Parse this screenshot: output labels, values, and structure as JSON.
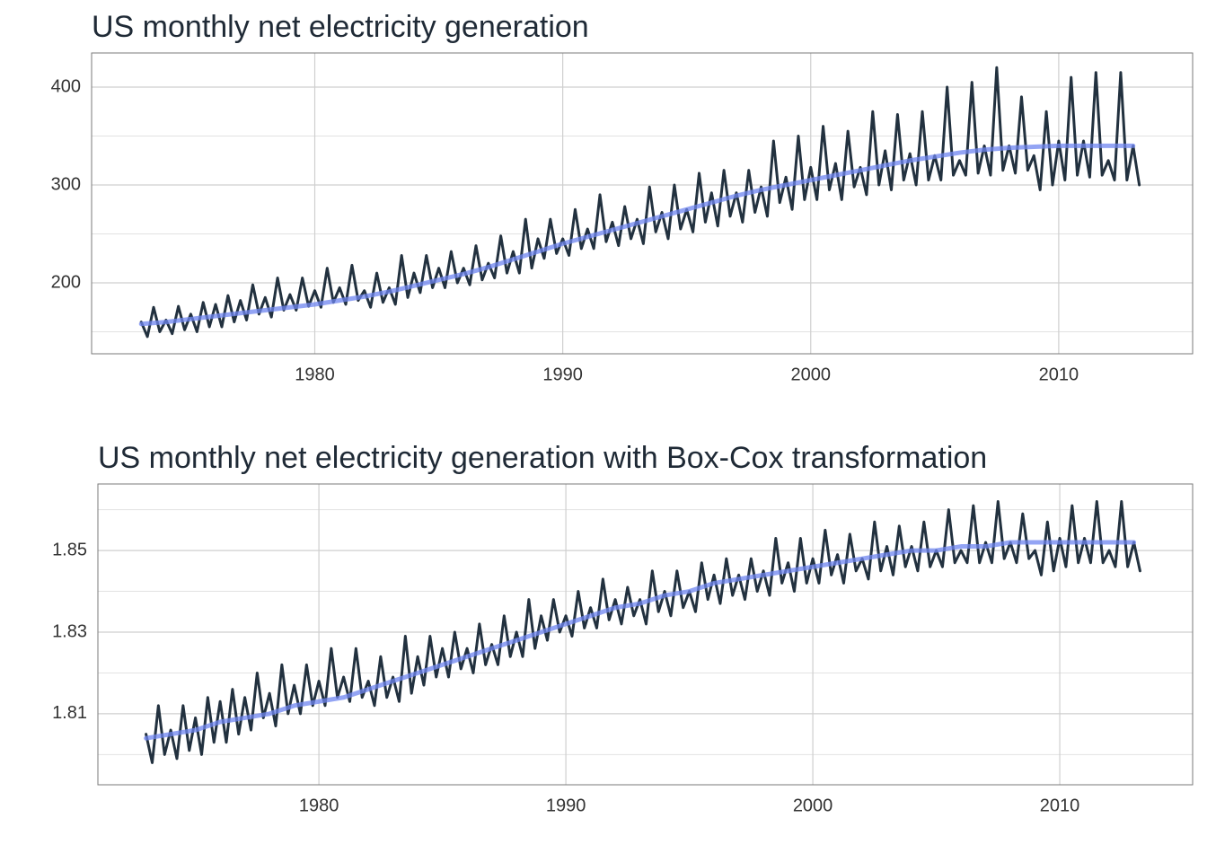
{
  "chart_data": [
    {
      "type": "line",
      "title": "US monthly net electricity generation",
      "xlim": [
        1971,
        2015.4
      ],
      "xticks": [
        1980,
        1990,
        2000,
        2010
      ],
      "ylim": [
        127.5,
        434.9
      ],
      "yticks": [
        200,
        300,
        400
      ],
      "minor_yticks": [
        150,
        250,
        350
      ],
      "grid": true,
      "series": [
        {
          "color": "#22313f",
          "width": 3,
          "x": [
            1973,
            1973.25,
            1973.5,
            1973.75,
            1974,
            1974.25,
            1974.5,
            1974.75,
            1975,
            1975.25,
            1975.5,
            1975.75,
            1976,
            1976.25,
            1976.5,
            1976.75,
            1977,
            1977.25,
            1977.5,
            1977.75,
            1978,
            1978.25,
            1978.5,
            1978.75,
            1979,
            1979.25,
            1979.5,
            1979.75,
            1980,
            1980.25,
            1980.5,
            1980.75,
            1981,
            1981.25,
            1981.5,
            1981.75,
            1982,
            1982.25,
            1982.5,
            1982.75,
            1983,
            1983.25,
            1983.5,
            1983.75,
            1984,
            1984.25,
            1984.5,
            1984.75,
            1985,
            1985.25,
            1985.5,
            1985.75,
            1986,
            1986.25,
            1986.5,
            1986.75,
            1987,
            1987.25,
            1987.5,
            1987.75,
            1988,
            1988.25,
            1988.5,
            1988.75,
            1989,
            1989.25,
            1989.5,
            1989.75,
            1990,
            1990.25,
            1990.5,
            1990.75,
            1991,
            1991.25,
            1991.5,
            1991.75,
            1992,
            1992.25,
            1992.5,
            1992.75,
            1993,
            1993.25,
            1993.5,
            1993.75,
            1994,
            1994.25,
            1994.5,
            1994.75,
            1995,
            1995.25,
            1995.5,
            1995.75,
            1996,
            1996.25,
            1996.5,
            1996.75,
            1997,
            1997.25,
            1997.5,
            1997.75,
            1998,
            1998.25,
            1998.5,
            1998.75,
            1999,
            1999.25,
            1999.5,
            1999.75,
            2000,
            2000.25,
            2000.5,
            2000.75,
            2001,
            2001.25,
            2001.5,
            2001.75,
            2002,
            2002.25,
            2002.5,
            2002.75,
            2003,
            2003.25,
            2003.5,
            2003.75,
            2004,
            2004.25,
            2004.5,
            2004.75,
            2005,
            2005.25,
            2005.5,
            2005.75,
            2006,
            2006.25,
            2006.5,
            2006.75,
            2007,
            2007.25,
            2007.5,
            2007.75,
            2008,
            2008.25,
            2008.5,
            2008.75,
            2009,
            2009.25,
            2009.5,
            2009.75,
            2010,
            2010.25,
            2010.5,
            2010.75,
            2011,
            2011.25,
            2011.5,
            2011.75,
            2012,
            2012.25,
            2012.5,
            2012.75,
            2013,
            2013.25
          ],
          "values": [
            160,
            145,
            175,
            150,
            162,
            148,
            176,
            152,
            168,
            150,
            180,
            155,
            178,
            155,
            187,
            160,
            182,
            162,
            198,
            168,
            185,
            165,
            205,
            172,
            188,
            172,
            205,
            176,
            192,
            175,
            215,
            180,
            195,
            178,
            218,
            182,
            192,
            175,
            210,
            180,
            195,
            178,
            228,
            185,
            210,
            190,
            228,
            195,
            215,
            195,
            232,
            200,
            215,
            198,
            238,
            203,
            220,
            205,
            248,
            210,
            232,
            210,
            265,
            215,
            245,
            225,
            265,
            230,
            245,
            228,
            275,
            235,
            255,
            235,
            290,
            242,
            262,
            238,
            278,
            245,
            265,
            240,
            298,
            252,
            272,
            245,
            300,
            255,
            275,
            252,
            312,
            262,
            292,
            258,
            315,
            268,
            292,
            262,
            315,
            272,
            298,
            268,
            345,
            282,
            308,
            275,
            350,
            285,
            318,
            285,
            360,
            295,
            322,
            285,
            355,
            298,
            318,
            290,
            375,
            300,
            335,
            295,
            372,
            305,
            332,
            300,
            375,
            305,
            330,
            305,
            400,
            310,
            325,
            310,
            405,
            312,
            340,
            310,
            420,
            315,
            340,
            312,
            390,
            315,
            330,
            295,
            375,
            300,
            345,
            305,
            410,
            310,
            345,
            308,
            415,
            310,
            325,
            305,
            415,
            305,
            340,
            300
          ]
        },
        {
          "color": "#6f86f0",
          "width": 5,
          "opacity": 0.75,
          "x": [
            1973,
            1974,
            1975,
            1976,
            1977,
            1978,
            1979,
            1980,
            1981,
            1982,
            1983,
            1984,
            1985,
            1986,
            1987,
            1988,
            1989,
            1990,
            1991,
            1992,
            1993,
            1994,
            1995,
            1996,
            1997,
            1998,
            1999,
            2000,
            2001,
            2002,
            2003,
            2004,
            2005,
            2006,
            2007,
            2008,
            2009,
            2010,
            2011,
            2012,
            2013
          ],
          "values": [
            158,
            160,
            163,
            166,
            169,
            172,
            175,
            178,
            182,
            186,
            191,
            197,
            203,
            209,
            216,
            224,
            232,
            240,
            247,
            254,
            261,
            268,
            275,
            282,
            289,
            295,
            300,
            305,
            310,
            315,
            320,
            325,
            329,
            333,
            336,
            338,
            339,
            340,
            340,
            340,
            340
          ]
        }
      ]
    },
    {
      "type": "line",
      "title": "US monthly net electricity generation with Box-Cox transformation",
      "xlim": [
        1971.05,
        2015.38
      ],
      "xticks": [
        1980,
        1990,
        2000,
        2010
      ],
      "ylim": [
        1.7926,
        1.8663
      ],
      "yticks": [
        1.81,
        1.83,
        1.85
      ],
      "minor_yticks": [
        1.8,
        1.82,
        1.84,
        1.86
      ],
      "grid": true,
      "series": [
        {
          "color": "#22313f",
          "width": 3,
          "x": [
            1973,
            1973.25,
            1973.5,
            1973.75,
            1974,
            1974.25,
            1974.5,
            1974.75,
            1975,
            1975.25,
            1975.5,
            1975.75,
            1976,
            1976.25,
            1976.5,
            1976.75,
            1977,
            1977.25,
            1977.5,
            1977.75,
            1978,
            1978.25,
            1978.5,
            1978.75,
            1979,
            1979.25,
            1979.5,
            1979.75,
            1980,
            1980.25,
            1980.5,
            1980.75,
            1981,
            1981.25,
            1981.5,
            1981.75,
            1982,
            1982.25,
            1982.5,
            1982.75,
            1983,
            1983.25,
            1983.5,
            1983.75,
            1984,
            1984.25,
            1984.5,
            1984.75,
            1985,
            1985.25,
            1985.5,
            1985.75,
            1986,
            1986.25,
            1986.5,
            1986.75,
            1987,
            1987.25,
            1987.5,
            1987.75,
            1988,
            1988.25,
            1988.5,
            1988.75,
            1989,
            1989.25,
            1989.5,
            1989.75,
            1990,
            1990.25,
            1990.5,
            1990.75,
            1991,
            1991.25,
            1991.5,
            1991.75,
            1992,
            1992.25,
            1992.5,
            1992.75,
            1993,
            1993.25,
            1993.5,
            1993.75,
            1994,
            1994.25,
            1994.5,
            1994.75,
            1995,
            1995.25,
            1995.5,
            1995.75,
            1996,
            1996.25,
            1996.5,
            1996.75,
            1997,
            1997.25,
            1997.5,
            1997.75,
            1998,
            1998.25,
            1998.5,
            1998.75,
            1999,
            1999.25,
            1999.5,
            1999.75,
            2000,
            2000.25,
            2000.5,
            2000.75,
            2001,
            2001.25,
            2001.5,
            2001.75,
            2002,
            2002.25,
            2002.5,
            2002.75,
            2003,
            2003.25,
            2003.5,
            2003.75,
            2004,
            2004.25,
            2004.5,
            2004.75,
            2005,
            2005.25,
            2005.5,
            2005.75,
            2006,
            2006.25,
            2006.5,
            2006.75,
            2007,
            2007.25,
            2007.5,
            2007.75,
            2008,
            2008.25,
            2008.5,
            2008.75,
            2009,
            2009.25,
            2009.5,
            2009.75,
            2010,
            2010.25,
            2010.5,
            2010.75,
            2011,
            2011.25,
            2011.5,
            2011.75,
            2012,
            2012.25,
            2012.5,
            2012.75,
            2013,
            2013.25
          ],
          "values": [
            1.805,
            1.798,
            1.812,
            1.8,
            1.806,
            1.799,
            1.812,
            1.801,
            1.809,
            1.8,
            1.814,
            1.803,
            1.813,
            1.803,
            1.816,
            1.805,
            1.814,
            1.806,
            1.82,
            1.809,
            1.815,
            1.807,
            1.822,
            1.81,
            1.817,
            1.81,
            1.822,
            1.812,
            1.818,
            1.812,
            1.826,
            1.814,
            1.819,
            1.813,
            1.826,
            1.814,
            1.818,
            1.812,
            1.824,
            1.814,
            1.819,
            1.813,
            1.829,
            1.815,
            1.824,
            1.817,
            1.829,
            1.819,
            1.826,
            1.819,
            1.83,
            1.821,
            1.826,
            1.82,
            1.832,
            1.822,
            1.827,
            1.822,
            1.834,
            1.824,
            1.83,
            1.824,
            1.838,
            1.826,
            1.834,
            1.828,
            1.838,
            1.83,
            1.834,
            1.829,
            1.84,
            1.831,
            1.836,
            1.831,
            1.843,
            1.833,
            1.838,
            1.832,
            1.841,
            1.834,
            1.838,
            1.832,
            1.845,
            1.835,
            1.84,
            1.834,
            1.845,
            1.836,
            1.84,
            1.835,
            1.847,
            1.838,
            1.844,
            1.837,
            1.848,
            1.839,
            1.844,
            1.838,
            1.848,
            1.84,
            1.845,
            1.839,
            1.853,
            1.842,
            1.847,
            1.84,
            1.853,
            1.842,
            1.848,
            1.842,
            1.855,
            1.844,
            1.849,
            1.842,
            1.854,
            1.845,
            1.848,
            1.843,
            1.857,
            1.845,
            1.851,
            1.844,
            1.856,
            1.846,
            1.851,
            1.845,
            1.857,
            1.846,
            1.85,
            1.846,
            1.86,
            1.847,
            1.85,
            1.847,
            1.861,
            1.847,
            1.852,
            1.847,
            1.862,
            1.848,
            1.852,
            1.847,
            1.859,
            1.848,
            1.85,
            1.844,
            1.857,
            1.845,
            1.853,
            1.846,
            1.861,
            1.847,
            1.853,
            1.847,
            1.862,
            1.847,
            1.85,
            1.846,
            1.862,
            1.846,
            1.852,
            1.845
          ]
        },
        {
          "color": "#6f86f0",
          "width": 5,
          "opacity": 0.75,
          "x": [
            1973,
            1974,
            1975,
            1976,
            1977,
            1978,
            1979,
            1980,
            1981,
            1982,
            1983,
            1984,
            1985,
            1986,
            1987,
            1988,
            1989,
            1990,
            1991,
            1992,
            1993,
            1994,
            1995,
            1996,
            1997,
            1998,
            1999,
            2000,
            2001,
            2002,
            2003,
            2004,
            2005,
            2006,
            2007,
            2008,
            2009,
            2010,
            2011,
            2012,
            2013
          ],
          "values": [
            1.804,
            1.805,
            1.806,
            1.808,
            1.809,
            1.81,
            1.812,
            1.813,
            1.814,
            1.816,
            1.818,
            1.82,
            1.822,
            1.824,
            1.826,
            1.828,
            1.83,
            1.832,
            1.834,
            1.836,
            1.837,
            1.839,
            1.84,
            1.842,
            1.843,
            1.844,
            1.845,
            1.846,
            1.847,
            1.848,
            1.849,
            1.85,
            1.85,
            1.851,
            1.851,
            1.852,
            1.852,
            1.852,
            1.852,
            1.852,
            1.852
          ]
        }
      ]
    }
  ]
}
